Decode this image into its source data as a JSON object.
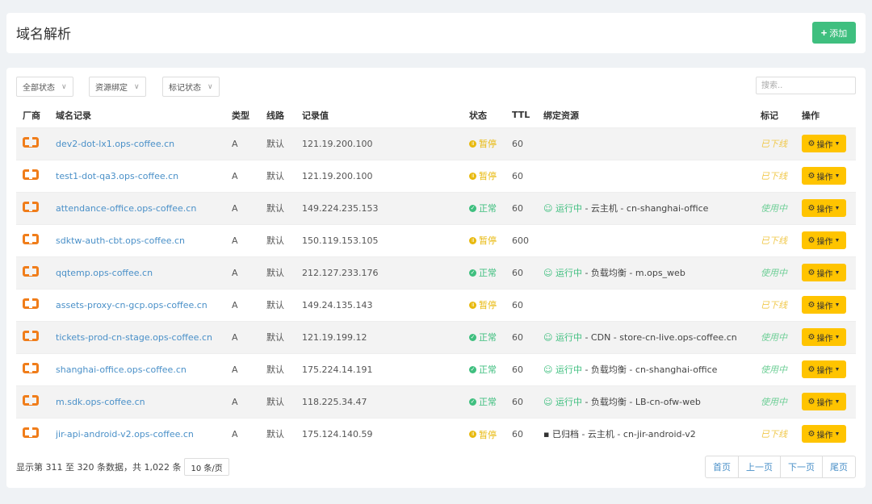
{
  "header": {
    "title": "域名解析",
    "add_label": "添加",
    "add_icon": "plus-icon"
  },
  "filters": [
    {
      "label": "全部状态"
    },
    {
      "label": "资源绑定"
    },
    {
      "label": "标记状态"
    }
  ],
  "search": {
    "placeholder": "搜索..",
    "value": ""
  },
  "columns": [
    "厂商",
    "域名记录",
    "类型",
    "线路",
    "记录值",
    "状态",
    "TTL",
    "绑定资源",
    "标记",
    "操作"
  ],
  "colors": {
    "link": "#4a90c8",
    "paused": "#e8b90e",
    "normal": "#3fbf7f",
    "button": "#ffc400",
    "vendor": "#f07d1a"
  },
  "rows": [
    {
      "domain": "dev2-dot-lx1.ops-coffee.cn",
      "type": "A",
      "line": "默认",
      "value": "121.19.200.100",
      "status": "暂停",
      "ttl": "60",
      "bind_state": "",
      "bind_rest": "",
      "mark": "已下线"
    },
    {
      "domain": "test1-dot-qa3.ops-coffee.cn",
      "type": "A",
      "line": "默认",
      "value": "121.19.200.100",
      "status": "暂停",
      "ttl": "60",
      "bind_state": "",
      "bind_rest": "",
      "mark": "已下线"
    },
    {
      "domain": "attendance-office.ops-coffee.cn",
      "type": "A",
      "line": "默认",
      "value": "149.224.235.153",
      "status": "正常",
      "ttl": "60",
      "bind_state": "运行中",
      "bind_rest": " - 云主机 - cn-shanghai-office",
      "mark": "使用中"
    },
    {
      "domain": "sdktw-auth-cbt.ops-coffee.cn",
      "type": "A",
      "line": "默认",
      "value": "150.119.153.105",
      "status": "暂停",
      "ttl": "600",
      "bind_state": "",
      "bind_rest": "",
      "mark": "已下线"
    },
    {
      "domain": "qqtemp.ops-coffee.cn",
      "type": "A",
      "line": "默认",
      "value": "212.127.233.176",
      "status": "正常",
      "ttl": "60",
      "bind_state": "运行中",
      "bind_rest": " - 负载均衡 - m.ops_web",
      "mark": "使用中"
    },
    {
      "domain": "assets-proxy-cn-gcp.ops-coffee.cn",
      "type": "A",
      "line": "默认",
      "value": "149.24.135.143",
      "status": "暂停",
      "ttl": "60",
      "bind_state": "",
      "bind_rest": "",
      "mark": "已下线"
    },
    {
      "domain": "tickets-prod-cn-stage.ops-coffee.cn",
      "type": "A",
      "line": "默认",
      "value": "121.19.199.12",
      "status": "正常",
      "ttl": "60",
      "bind_state": "运行中",
      "bind_rest": " - CDN - store-cn-live.ops-coffee.cn",
      "mark": "使用中"
    },
    {
      "domain": "shanghai-office.ops-coffee.cn",
      "type": "A",
      "line": "默认",
      "value": "175.224.14.191",
      "status": "正常",
      "ttl": "60",
      "bind_state": "运行中",
      "bind_rest": " - 负载均衡 - cn-shanghai-office",
      "mark": "使用中"
    },
    {
      "domain": "m.sdk.ops-coffee.cn",
      "type": "A",
      "line": "默认",
      "value": "118.225.34.47",
      "status": "正常",
      "ttl": "60",
      "bind_state": "运行中",
      "bind_rest": " - 负载均衡 - LB-cn-ofw-web",
      "mark": "使用中"
    },
    {
      "domain": "jir-api-android-v2.ops-coffee.cn",
      "type": "A",
      "line": "默认",
      "value": "175.124.140.59",
      "status": "暂停",
      "ttl": "60",
      "bind_state": "已归档",
      "bind_rest": " - 云主机 - cn-jir-android-v2",
      "mark": "已下线"
    }
  ],
  "op_label": "操作",
  "footer": {
    "info": "显示第 311 至 320 条数据，共 1,022 条",
    "page_size": "10 条/页",
    "pager": [
      "首页",
      "上一页",
      "下一页",
      "尾页"
    ]
  }
}
